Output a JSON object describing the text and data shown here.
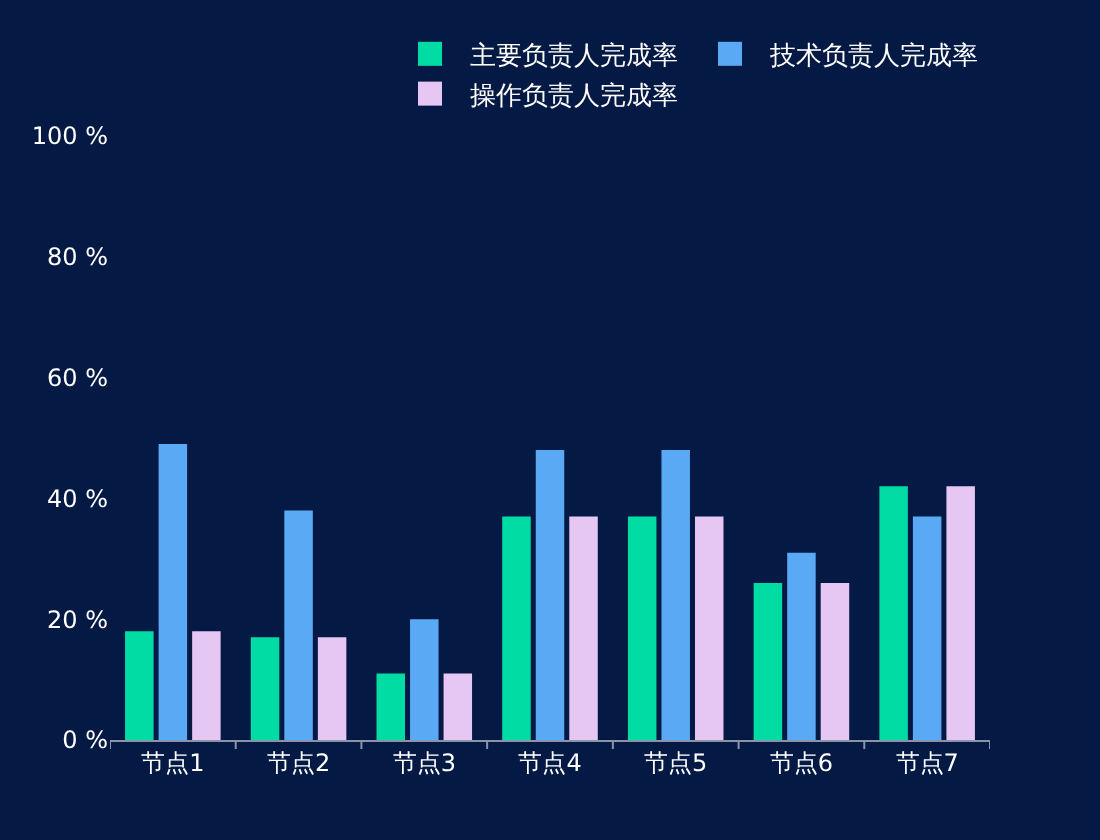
{
  "chart_data": {
    "type": "bar",
    "categories": [
      "节点1",
      "节点2",
      "节点3",
      "节点4",
      "节点5",
      "节点6",
      "节点7"
    ],
    "series": [
      {
        "name": "主要负责人完成率",
        "color": "#00dca4",
        "values": [
          18,
          17,
          11,
          37,
          37,
          26,
          42
        ]
      },
      {
        "name": "技术负责人完成率",
        "color": "#5aa9f5",
        "values": [
          49,
          38,
          20,
          48,
          48,
          31,
          37
        ]
      },
      {
        "name": "操作负责人完成率",
        "color": "#e6c6f2",
        "values": [
          18,
          17,
          11,
          37,
          37,
          26,
          42
        ]
      }
    ],
    "ylim": [
      0,
      100
    ],
    "yticks": [
      {
        "value": 0,
        "label": "0 %"
      },
      {
        "value": 20,
        "label": "20 %"
      },
      {
        "value": 40,
        "label": "40 %"
      },
      {
        "value": 60,
        "label": "60 %"
      },
      {
        "value": 80,
        "label": "80 %"
      },
      {
        "value": 100,
        "label": "100 %"
      }
    ],
    "grid": false,
    "legend": "top right"
  }
}
